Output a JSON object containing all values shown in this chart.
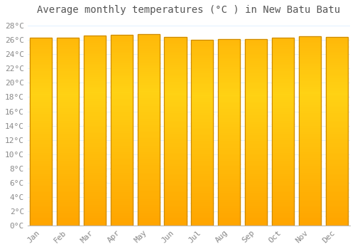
{
  "title": "Average monthly temperatures (°C ) in New Batu Batu",
  "months": [
    "Jan",
    "Feb",
    "Mar",
    "Apr",
    "May",
    "Jun",
    "Jul",
    "Aug",
    "Sep",
    "Oct",
    "Nov",
    "Dec"
  ],
  "temperatures": [
    26.3,
    26.3,
    26.6,
    26.7,
    26.8,
    26.4,
    26.0,
    26.1,
    26.1,
    26.3,
    26.5,
    26.4
  ],
  "background_color": "#FFFFFF",
  "grid_color": "#DDEEFF",
  "bar_color_main": "#FFA500",
  "bar_color_highlight": "#FFD060",
  "bar_edge_color": "#CC8800",
  "ylim": [
    0,
    29
  ],
  "yticks": [
    0,
    2,
    4,
    6,
    8,
    10,
    12,
    14,
    16,
    18,
    20,
    22,
    24,
    26,
    28
  ],
  "title_fontsize": 10,
  "tick_fontsize": 8,
  "bar_width": 0.82
}
